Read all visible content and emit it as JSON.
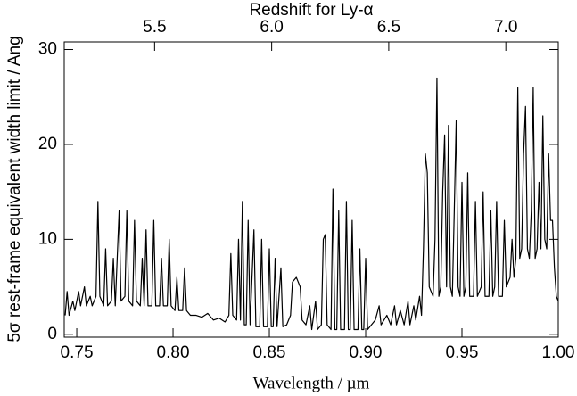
{
  "chart_data": {
    "type": "line",
    "xlabel": "Wavelength / µm",
    "ylabel": "5σ rest-frame equivalent width limit / Ang",
    "x2label": "Redshift for Ly-α",
    "color": "#000000",
    "xlim": [
      0.7435,
      1.0
    ],
    "xticks": [
      0.75,
      {
        "value": 0.8,
        "label": "0.80"
      },
      0.85,
      {
        "value": 0.9,
        "label": "0.90"
      },
      0.95,
      {
        "value": 1.0,
        "label": "1.00"
      }
    ],
    "x2lim": [
      5.114,
      7.224
    ],
    "x2ticks": [
      5.5,
      {
        "value": 6.0,
        "label": "6.0"
      },
      6.5,
      {
        "value": 7.0,
        "label": "7.0"
      }
    ],
    "ylim": [
      -0.3,
      30.8
    ],
    "yticks": [
      0,
      10,
      20,
      30
    ],
    "x": [
      0.744,
      0.745,
      0.746,
      0.748,
      0.749,
      0.751,
      0.752,
      0.754,
      0.755,
      0.757,
      0.758,
      0.76,
      0.761,
      0.762,
      0.764,
      0.765,
      0.766,
      0.768,
      0.769,
      0.77,
      0.772,
      0.773,
      0.775,
      0.776,
      0.777,
      0.779,
      0.78,
      0.781,
      0.783,
      0.784,
      0.785,
      0.786,
      0.787,
      0.789,
      0.79,
      0.791,
      0.793,
      0.794,
      0.795,
      0.797,
      0.798,
      0.799,
      0.801,
      0.802,
      0.803,
      0.805,
      0.806,
      0.807,
      0.809,
      0.812,
      0.815,
      0.818,
      0.821,
      0.824,
      0.827,
      0.829,
      0.83,
      0.831,
      0.833,
      0.834,
      0.835,
      0.836,
      0.837,
      0.838,
      0.839,
      0.84,
      0.842,
      0.843,
      0.845,
      0.846,
      0.847,
      0.849,
      0.85,
      0.851,
      0.852,
      0.853,
      0.854,
      0.856,
      0.857,
      0.859,
      0.861,
      0.862,
      0.864,
      0.866,
      0.867,
      0.869,
      0.871,
      0.872,
      0.874,
      0.875,
      0.877,
      0.878,
      0.879,
      0.88,
      0.882,
      0.883,
      0.884,
      0.885,
      0.886,
      0.887,
      0.889,
      0.89,
      0.891,
      0.892,
      0.893,
      0.894,
      0.896,
      0.897,
      0.898,
      0.899,
      0.9,
      0.901,
      0.903,
      0.905,
      0.907,
      0.908,
      0.911,
      0.913,
      0.915,
      0.916,
      0.918,
      0.92,
      0.922,
      0.923,
      0.925,
      0.926,
      0.928,
      0.929,
      0.93,
      0.931,
      0.932,
      0.933,
      0.935,
      0.936,
      0.937,
      0.938,
      0.939,
      0.94,
      0.941,
      0.942,
      0.943,
      0.944,
      0.945,
      0.946,
      0.947,
      0.948,
      0.949,
      0.95,
      0.951,
      0.952,
      0.953,
      0.954,
      0.956,
      0.957,
      0.958,
      0.96,
      0.961,
      0.962,
      0.964,
      0.965,
      0.966,
      0.967,
      0.968,
      0.969,
      0.971,
      0.972,
      0.973,
      0.975,
      0.976,
      0.977,
      0.978,
      0.979,
      0.98,
      0.981,
      0.982,
      0.983,
      0.984,
      0.985,
      0.986,
      0.987,
      0.988,
      0.989,
      0.99,
      0.991,
      0.992,
      0.993,
      0.994,
      0.995,
      0.996,
      0.997,
      0.998,
      0.999,
      1.0
    ],
    "values": [
      2,
      4.5,
      2,
      3.5,
      2.5,
      4.5,
      3,
      5,
      3,
      4,
      3,
      4,
      14,
      4,
      3,
      9,
      3,
      3.5,
      8,
      3,
      13,
      3.5,
      4,
      13,
      3.5,
      3,
      12,
      3.5,
      3,
      8,
      3,
      11,
      3,
      3,
      12,
      3,
      3,
      8,
      3,
      3,
      10,
      3,
      2.5,
      6,
      2.5,
      2.5,
      7,
      2.5,
      2,
      2,
      1.8,
      2.2,
      1.5,
      1.7,
      1.3,
      2,
      8.5,
      2,
      1.5,
      10,
      1.5,
      14,
      1,
      1,
      12,
      1,
      11,
      0.8,
      0.8,
      10,
      0.8,
      0.8,
      9,
      0.8,
      0.8,
      8,
      0.8,
      7,
      0.8,
      1,
      2,
      5.5,
      6,
      5,
      1.5,
      1,
      3,
      0.5,
      3.5,
      0.5,
      1,
      10,
      10.5,
      1,
      0.5,
      15.3,
      0.5,
      0.5,
      13,
      0.5,
      0.5,
      14,
      0.5,
      0.5,
      12,
      0.5,
      0.5,
      9,
      0.5,
      0.5,
      8,
      0.5,
      1,
      1.5,
      3,
      1,
      2,
      1,
      3,
      1,
      2.5,
      1,
      3.5,
      1,
      3,
      1.5,
      4,
      2,
      9,
      19,
      17,
      5,
      4,
      10,
      27,
      4,
      5,
      15,
      21,
      5,
      22,
      5,
      4,
      13,
      22.5,
      5,
      4,
      16,
      4,
      5,
      17,
      4,
      4,
      14,
      4,
      5,
      15,
      4,
      4,
      13,
      4,
      5,
      14,
      4,
      4,
      12,
      5,
      6,
      10,
      6,
      8,
      26,
      8,
      9,
      19,
      24,
      9,
      8,
      13,
      26,
      8,
      9,
      16,
      9,
      23,
      10,
      9,
      19,
      12,
      12,
      7,
      4,
      3.5
    ]
  }
}
